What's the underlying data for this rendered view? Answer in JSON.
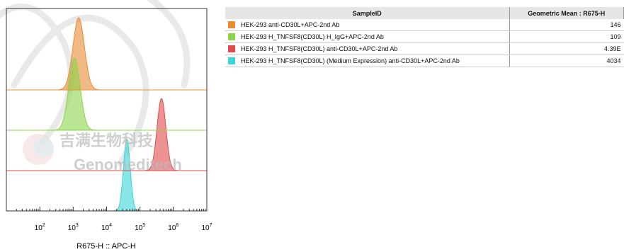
{
  "chart_data": {
    "type": "area",
    "subtype": "flow-cytometry overlaid histograms (offset)",
    "xlabel": "R675-H :: APC-H",
    "x_scale": "log",
    "xlim": [
      10,
      10000000
    ],
    "x_ticks": [
      {
        "base": "10",
        "exp": "2",
        "value": 100
      },
      {
        "base": "10",
        "exp": "3",
        "value": 1000
      },
      {
        "base": "10",
        "exp": "4",
        "value": 10000
      },
      {
        "base": "10",
        "exp": "5",
        "value": 100000
      },
      {
        "base": "10",
        "exp": "6",
        "value": 1000000
      },
      {
        "base": "10",
        "exp": "7",
        "value": 10000000
      }
    ],
    "series": [
      {
        "name": "HEK-293 anti-CD30L+APC-2nd Ab",
        "color": "#e88c34",
        "peak_x": 1460,
        "geometric_mean": "146"
      },
      {
        "name": "HEK-293 H_TNFSF8(CD30L) H_IgG+APC-2nd Ab",
        "color": "#8cd44a",
        "peak_x": 1090,
        "geometric_mean": "109"
      },
      {
        "name": "HEK-293 H_TNFSF8(CD30L) anti-CD30L+APC-2nd Ab",
        "color": "#e04a4a",
        "peak_x": 439000,
        "geometric_mean": "4.39E"
      },
      {
        "name": "HEK-293 H_TNFSF8(CD30L) (Medium Expression) anti-CD30L+APC-2nd Ab",
        "color": "#38d6d6",
        "peak_x": 40340,
        "geometric_mean": "4034"
      }
    ]
  },
  "table": {
    "header_sample": "SampleID",
    "header_value": "Geometric Mean : R675-H",
    "rows": [
      {
        "color": "#e88c34",
        "sample": "HEK-293 anti-CD30L+APC-2nd Ab",
        "value": "146"
      },
      {
        "color": "#8cd44a",
        "sample": "HEK-293 H_TNFSF8(CD30L) H_IgG+APC-2nd Ab",
        "value": "109"
      },
      {
        "color": "#e04a4a",
        "sample": "HEK-293 H_TNFSF8(CD30L) anti-CD30L+APC-2nd Ab",
        "value": "4.39E"
      },
      {
        "color": "#38d6d6",
        "sample": "HEK-293 H_TNFSF8(CD30L) (Medium Expression) anti-CD30L+APC-2nd Ab",
        "value": "4034"
      }
    ]
  },
  "watermark": {
    "cn": "吉满生物科技",
    "en": "Genomeditech"
  }
}
